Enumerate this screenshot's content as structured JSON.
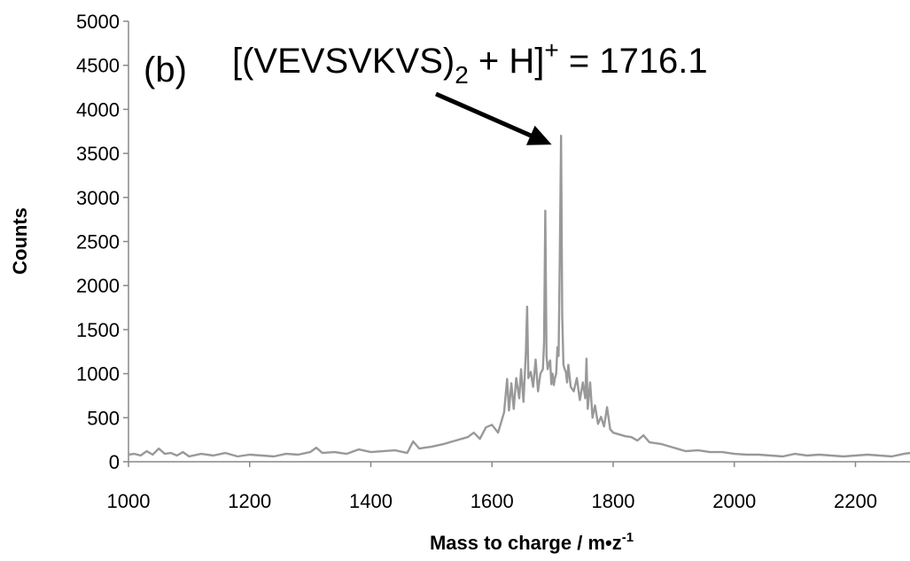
{
  "chart_data": {
    "type": "line",
    "panel_label": "(b)",
    "annotation": {
      "text_main": "[(VEVSVKVS)",
      "text_sub": "2",
      "text_mid": " + H]",
      "text_sup": "+",
      "text_end": " = 1716.1",
      "target_x": 1716.1,
      "target_y": 3600
    },
    "xlabel": "Mass to charge / m•z",
    "xlabel_sup": "-1",
    "ylabel": "Counts",
    "xlim": [
      1000,
      2290
    ],
    "ylim": [
      0,
      5000
    ],
    "x_ticks": [
      1000,
      1200,
      1400,
      1600,
      1800,
      2000,
      2200
    ],
    "y_ticks": [
      0,
      500,
      1000,
      1500,
      2000,
      2500,
      3000,
      3500,
      4000,
      4500,
      5000
    ],
    "series_color": "#999999",
    "series": [
      {
        "x": [
          1000,
          1010,
          1020,
          1030,
          1040,
          1050,
          1060,
          1070,
          1080,
          1090,
          1100,
          1120,
          1140,
          1160,
          1180,
          1200,
          1220,
          1240,
          1260,
          1280,
          1300,
          1310,
          1320,
          1340,
          1360,
          1380,
          1400,
          1420,
          1440,
          1460,
          1470,
          1480,
          1500,
          1520,
          1540,
          1560,
          1570,
          1580,
          1590,
          1600,
          1610,
          1620,
          1625,
          1628,
          1632,
          1636,
          1640,
          1645,
          1648,
          1652,
          1656,
          1658,
          1660,
          1664,
          1668,
          1672,
          1676,
          1680,
          1684,
          1686,
          1688,
          1690,
          1692,
          1694,
          1696,
          1698,
          1700,
          1702,
          1704,
          1706,
          1708,
          1710,
          1712,
          1714,
          1716,
          1718,
          1720,
          1722,
          1724,
          1726,
          1730,
          1735,
          1740,
          1745,
          1750,
          1754,
          1756,
          1758,
          1762,
          1766,
          1770,
          1775,
          1780,
          1785,
          1790,
          1795,
          1800,
          1810,
          1820,
          1830,
          1840,
          1850,
          1860,
          1880,
          1900,
          1920,
          1940,
          1960,
          1980,
          2000,
          2020,
          2040,
          2060,
          2080,
          2100,
          2120,
          2140,
          2160,
          2180,
          2200,
          2220,
          2240,
          2260,
          2280,
          2290
        ],
        "y": [
          80,
          90,
          70,
          120,
          80,
          150,
          90,
          100,
          70,
          110,
          60,
          90,
          70,
          100,
          60,
          80,
          70,
          60,
          90,
          80,
          110,
          160,
          100,
          110,
          90,
          140,
          110,
          120,
          130,
          100,
          230,
          150,
          170,
          200,
          240,
          280,
          330,
          260,
          390,
          420,
          330,
          560,
          940,
          580,
          890,
          600,
          950,
          720,
          1050,
          680,
          1250,
          1760,
          950,
          1020,
          850,
          1160,
          800,
          1000,
          1050,
          1350,
          2850,
          1200,
          1050,
          1120,
          1150,
          880,
          1000,
          870,
          950,
          1000,
          1300,
          1200,
          2350,
          3700,
          1650,
          1100,
          1050,
          1020,
          900,
          1100,
          850,
          800,
          950,
          700,
          900,
          720,
          1170,
          600,
          900,
          500,
          640,
          430,
          510,
          400,
          620,
          370,
          330,
          310,
          290,
          280,
          240,
          300,
          220,
          200,
          160,
          120,
          130,
          110,
          110,
          90,
          80,
          80,
          70,
          60,
          90,
          70,
          80,
          70,
          60,
          70,
          80,
          70,
          60,
          90,
          100
        ]
      }
    ]
  }
}
